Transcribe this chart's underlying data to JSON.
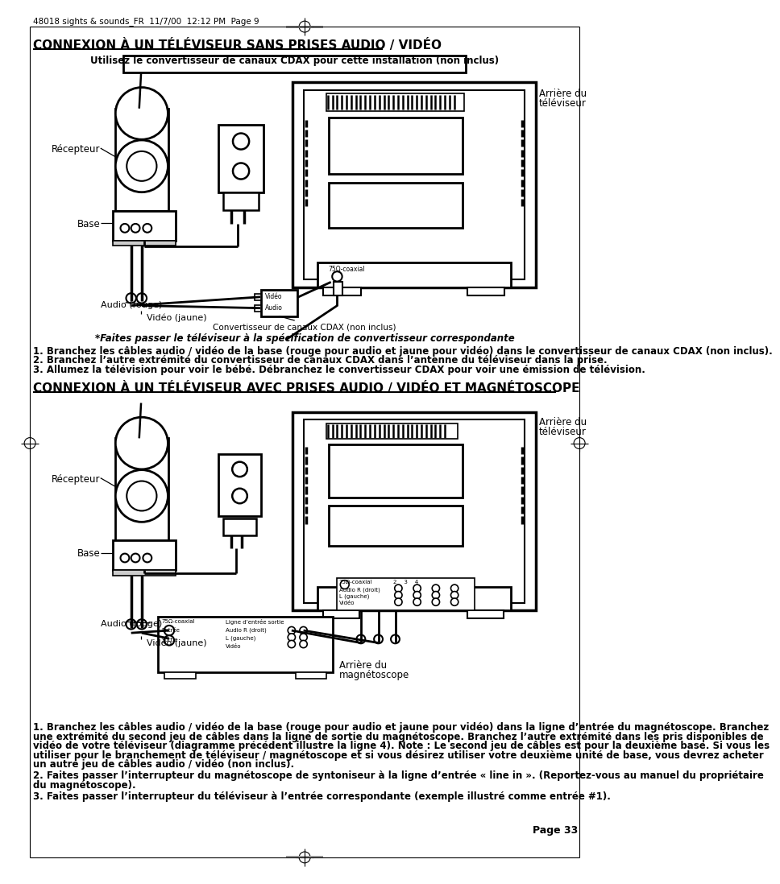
{
  "page_header": "48018 sights & sounds_FR  11/7/00  12:12 PM  Page 9",
  "title1": "CONNEXION À UN TÉLÉVISEUR SANS PRISES AUDIO / VIDÉO",
  "box_text": "Utilisez le convertisseur de canaux CDAX pour cette installation (non inclus)",
  "label_recepteur1": "Récepteur",
  "label_base1": "Base",
  "label_audio_rouge1": "Audio (rouge)",
  "label_video_jaune1": "Vidéo (jaune)",
  "label_arriere_tv1_line1": "Arrière du",
  "label_arriere_tv1_line2": "téléviseur",
  "label_convertisseur": "Convertisseur de canaux CDAX (non inclus)",
  "note_star": "*Faites passer le téléviseur à la spécification de convertisseur correspondante",
  "step1_1": "1. Branchez les câbles audio / vidéo de la base (rouge pour audio et jaune pour vidéo) dans le convertisseur de canaux CDAX (non inclus).",
  "step1_2": "2. Branchez l’autre extrémité du convertisseur de canaux CDAX dans l’antenne du téléviseur dans la prise.",
  "step1_3": "3. Allumez la télévision pour voir le bébé. Débranchez le convertisseur CDAX pour voir une émission de télévision.",
  "title2": "CONNEXION À UN TÉLÉVISEUR AVEC PRISES AUDIO / VIDÉO ET MAGNÉTOSCOPE",
  "label_recepteur2": "Récepteur",
  "label_base2": "Base",
  "label_audio_rouge2": "Audio (rouge)",
  "label_video_jaune2": "Vidéo (jaune)",
  "label_arriere_tv2_line1": "Arrière du",
  "label_arriere_tv2_line2": "téléviseur",
  "label_arriere_mag_line1": "Arrière du",
  "label_arriere_mag_line2": "magnétoscope",
  "step2_1": "1. Branchez les câbles audio / vidéo de la base (rouge pour audio et jaune pour vidéo) dans la ligne d’entrée du magnétoscope. Branchez",
  "step2_1b": "une extrémité du second jeu de câbles dans la ligne de sortie du magnétoscope. Branchez l’autre extrémité dans les pris disponibles de",
  "step2_1c": "vidéo de votre téléviseur (diagramme précédent illustre la ligne 4). Note : Le second jeu de câbles est pour la deuxième base. Si vous les",
  "step2_1d": "utiliser pour le branchement de téléviseur / magnétoscope et si vous désirez utiliser votre deuxième unité de base, vous devrez acheter",
  "step2_1e": "un autre jeu de câbles audio / vidéo (non inclus).",
  "step2_2": "2. Faites passer l’interrupteur du magnétoscope de syntoniseur à la ligne d’entrée « line in ». (Reportez-vous au manuel du propriétaire",
  "step2_2b": "du magnétoscope).",
  "step2_3": "3. Faites passer l’interrupteur du téléviseur à l’entrée correspondante (exemple illustré comme entrée #1).",
  "page_number": "Page 33",
  "bg_color": "#ffffff",
  "text_color": "#000000"
}
